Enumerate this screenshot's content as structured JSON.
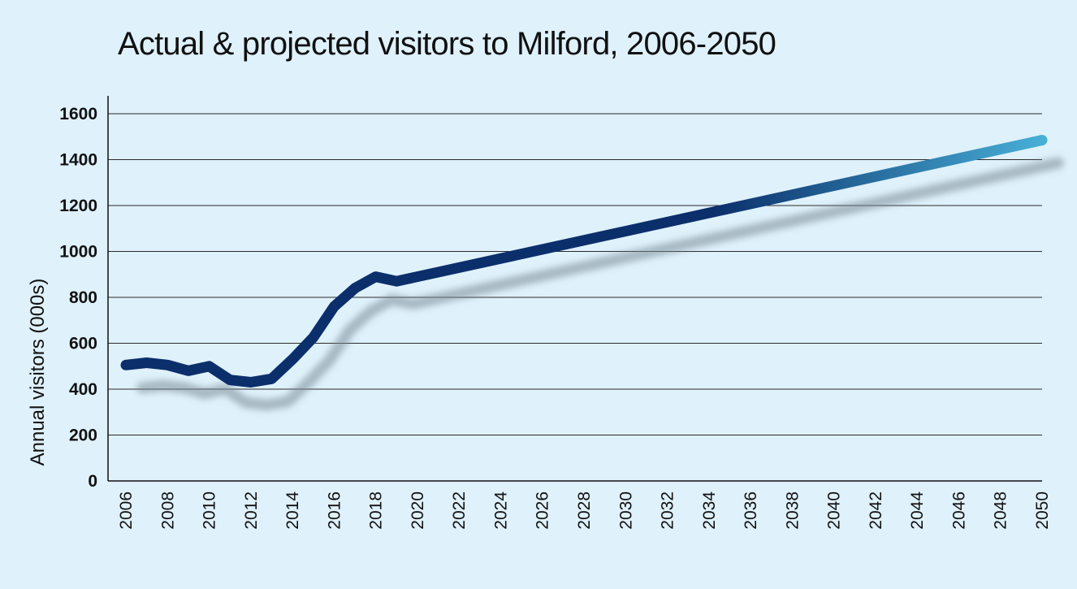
{
  "chart_data": {
    "type": "line",
    "title": "Actual & projected visitors to Milford, 2006-2050",
    "xlabel": "",
    "ylabel": "Annual visitors  (000s)",
    "xlim": [
      2006,
      2050
    ],
    "ylim": [
      0,
      1600
    ],
    "x_ticks": [
      "2006",
      "2008",
      "2010",
      "2012",
      "2014",
      "2016",
      "2018",
      "2020",
      "2022",
      "2024",
      "2026",
      "2028",
      "2030",
      "2032",
      "2034",
      "2036",
      "2038",
      "2040",
      "2042",
      "2044",
      "2046",
      "2048",
      "2050"
    ],
    "y_ticks": [
      "0",
      "200",
      "400",
      "600",
      "800",
      "1000",
      "1200",
      "1400",
      "1600"
    ],
    "grid": "horizontal",
    "legend": "none",
    "series": [
      {
        "x": [
          2006,
          2007,
          2008,
          2009,
          2010,
          2011,
          2012,
          2013,
          2014,
          2015,
          2016,
          2017,
          2018,
          2019,
          2050
        ],
        "y": [
          505,
          515,
          505,
          480,
          500,
          440,
          430,
          445,
          530,
          625,
          760,
          840,
          890,
          870,
          1485
        ]
      }
    ],
    "colors": {
      "actual": "#0b2f6b",
      "projected_end": "#47afd6",
      "shadow": "#7a8a96",
      "grid": "#2b2b2b",
      "background": "#dff1fb"
    }
  }
}
